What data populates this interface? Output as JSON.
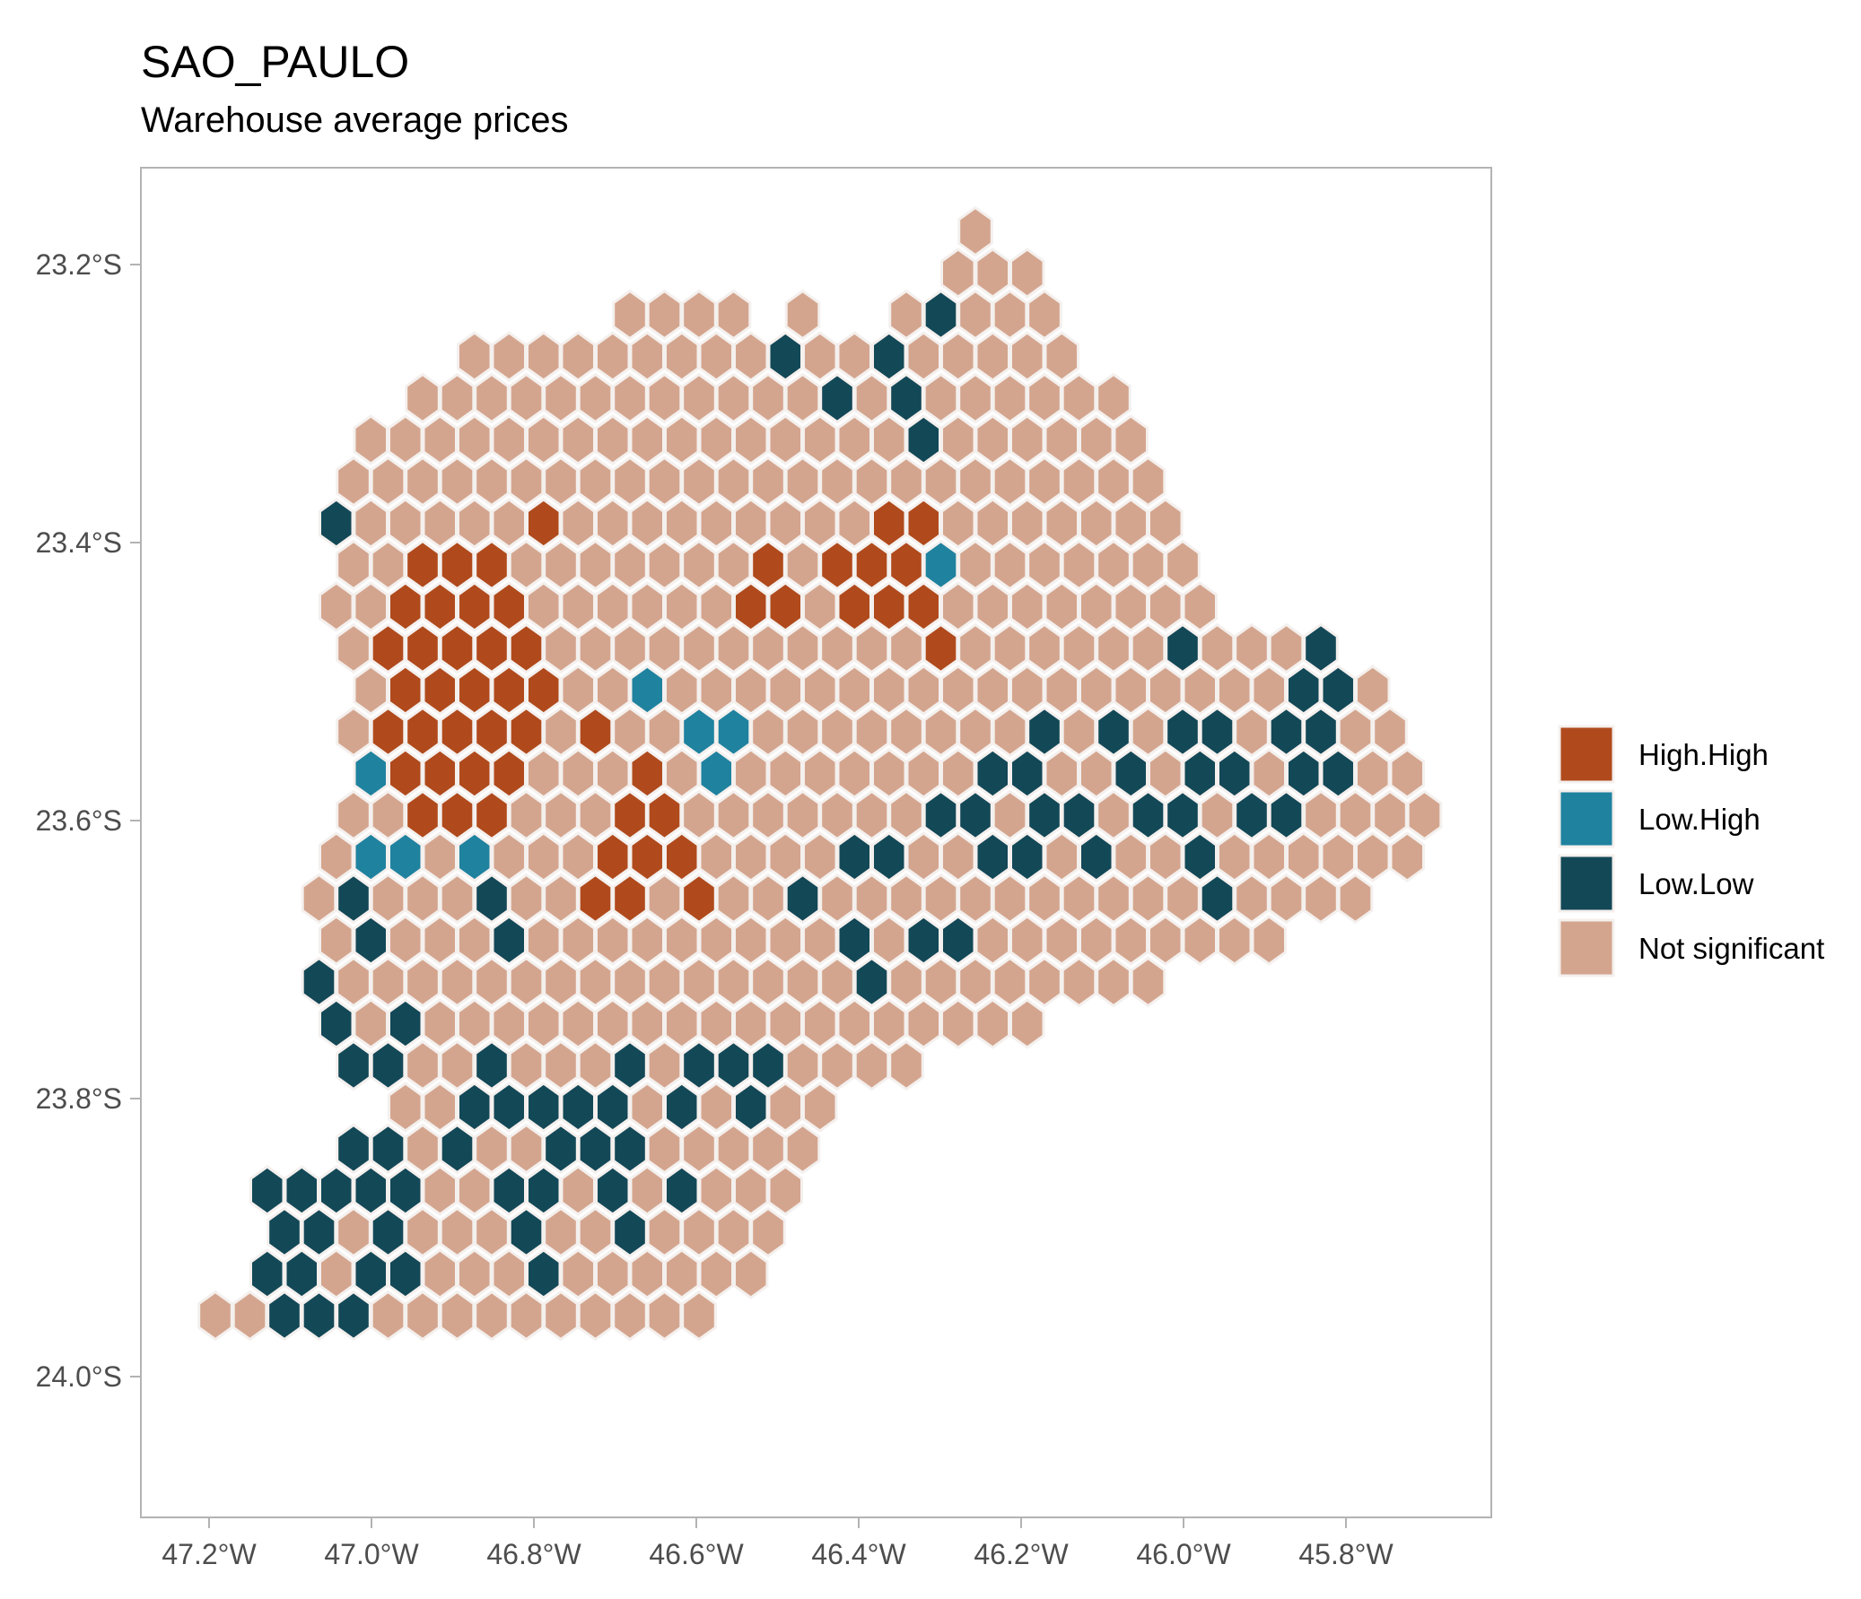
{
  "title": "SAO_PAULO",
  "subtitle": "Warehouse average prices",
  "colors": {
    "high_high": "#b04a1c",
    "low_high": "#1f829f",
    "low_low": "#134857",
    "not_significant": "#d4a58e",
    "hex_border": "#f4f0ee",
    "panel_border": "#b3b3b3",
    "axis_text": "#4d4d4d"
  },
  "chart_data": {
    "type": "hexbin-choropleth",
    "x_axis": {
      "ticks": [
        "47.2°W",
        "47.0°W",
        "46.8°W",
        "46.6°W",
        "46.4°W",
        "46.2°W",
        "46.0°W",
        "45.8°W"
      ],
      "values": [
        -47.2,
        -47.0,
        -46.8,
        -46.6,
        -46.4,
        -46.2,
        -46.0,
        -45.8
      ],
      "range": [
        -47.28,
        -45.62
      ]
    },
    "y_axis": {
      "ticks": [
        "23.2°S",
        "23.4°S",
        "23.6°S",
        "23.8°S",
        "24.0°S"
      ],
      "values": [
        -23.2,
        -23.4,
        -23.6,
        -23.8,
        -24.0
      ],
      "range": [
        -24.1,
        -23.13
      ]
    },
    "legend": {
      "position": "right",
      "entries": [
        {
          "key": "high_high",
          "label": "High.High"
        },
        {
          "key": "low_high",
          "label": "Low.High"
        },
        {
          "key": "low_low",
          "label": "Low.Low"
        },
        {
          "key": "not_significant",
          "label": "Not significant"
        }
      ]
    },
    "grid": false,
    "hex_cells": {
      "encoding": "lon = -47.18 + col*0.0425 (odd rows offset +0.02125); lat = -23.175 - row*0.0388",
      "rows": [
        {
          "row": 0,
          "cells": "...........xx..........."
        },
        {
          "row": 1,
          "cells": ".............xx.x......."
        },
        {
          "row": 2,
          "cells": "..........xxxxx.xxx....."
        },
        {
          "row": 3,
          "cells": "........xxxxxxxx.xxx....."
        },
        {
          "row": 4,
          "cells": "......xxxxxxxxxxxxxxx...."
        },
        {
          "row": 5,
          "cells": ".....xxxxxxxxxxxxxxxxx..."
        },
        {
          "row": 6,
          "cells": "....xxxxxxxxxxxxxxxxxxx.."
        }
      ],
      "map_hint": "See script for full hex class map"
    }
  },
  "x_tick_positions_note": ""
}
